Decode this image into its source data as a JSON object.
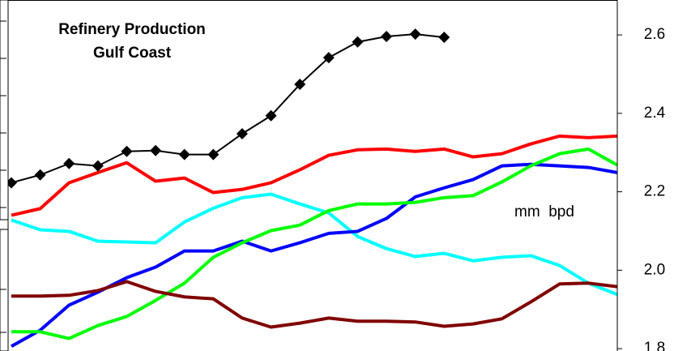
{
  "chart_data": {
    "type": "line",
    "title": "Refinery Production",
    "subtitle": "Gulf Coast",
    "annotation": "mm  bpd",
    "categories": [
      null,
      null,
      null,
      null,
      null,
      null,
      null,
      null,
      null,
      null,
      null,
      null,
      null,
      null,
      null,
      null,
      null,
      null,
      null,
      null,
      null,
      null
    ],
    "ylim": [
      1.794,
      2.689
    ],
    "yticks": [
      1.8,
      {
        "value": 2,
        "label": "2.0"
      },
      2.2,
      2.4,
      2.6
    ],
    "series": [
      {
        "color": "#ff0000",
        "values": [
          2.14,
          2.157,
          2.223,
          2.249,
          2.274,
          2.227,
          2.235,
          2.198,
          2.206,
          2.223,
          2.256,
          2.293,
          2.307,
          2.309,
          2.303,
          2.309,
          2.289,
          2.297,
          2.322,
          2.342,
          2.338,
          2.342
        ]
      },
      {
        "color": "#00ffff",
        "values": [
          2.128,
          2.103,
          2.099,
          2.074,
          2.072,
          2.07,
          2.123,
          2.158,
          2.185,
          2.194,
          2.169,
          2.146,
          2.086,
          2.055,
          2.035,
          2.043,
          2.024,
          2.033,
          2.037,
          2.012,
          1.967,
          1.938
        ]
      },
      {
        "color": "#0000ff",
        "values": [
          1.806,
          1.847,
          1.911,
          1.944,
          1.981,
          2.008,
          2.049,
          2.049,
          2.074,
          2.049,
          2.07,
          2.094,
          2.099,
          2.132,
          2.187,
          2.21,
          2.231,
          2.266,
          2.27,
          2.266,
          2.262,
          2.249
        ]
      },
      {
        "color": "#00ff00",
        "values": [
          1.843,
          1.843,
          1.826,
          1.859,
          1.882,
          1.923,
          1.967,
          2.033,
          2.07,
          2.101,
          2.115,
          2.152,
          2.169,
          2.169,
          2.173,
          2.185,
          2.19,
          2.225,
          2.266,
          2.297,
          2.309,
          2.268
        ]
      },
      {
        "color": "#800000",
        "values": [
          1.934,
          1.934,
          1.936,
          1.948,
          1.971,
          1.946,
          1.932,
          1.927,
          1.878,
          1.855,
          1.865,
          1.878,
          1.87,
          1.87,
          1.868,
          1.857,
          1.863,
          1.876,
          1.919,
          1.965,
          1.967,
          1.958
        ]
      },
      {
        "color": "#000000",
        "marker": "diamond",
        "values": [
          2.223,
          2.243,
          2.272,
          2.266,
          2.303,
          2.305,
          2.295,
          2.295,
          2.348,
          2.394,
          2.474,
          2.542,
          2.582,
          2.596,
          2.602,
          2.594,
          null,
          null,
          null,
          null,
          null,
          null
        ]
      }
    ]
  }
}
